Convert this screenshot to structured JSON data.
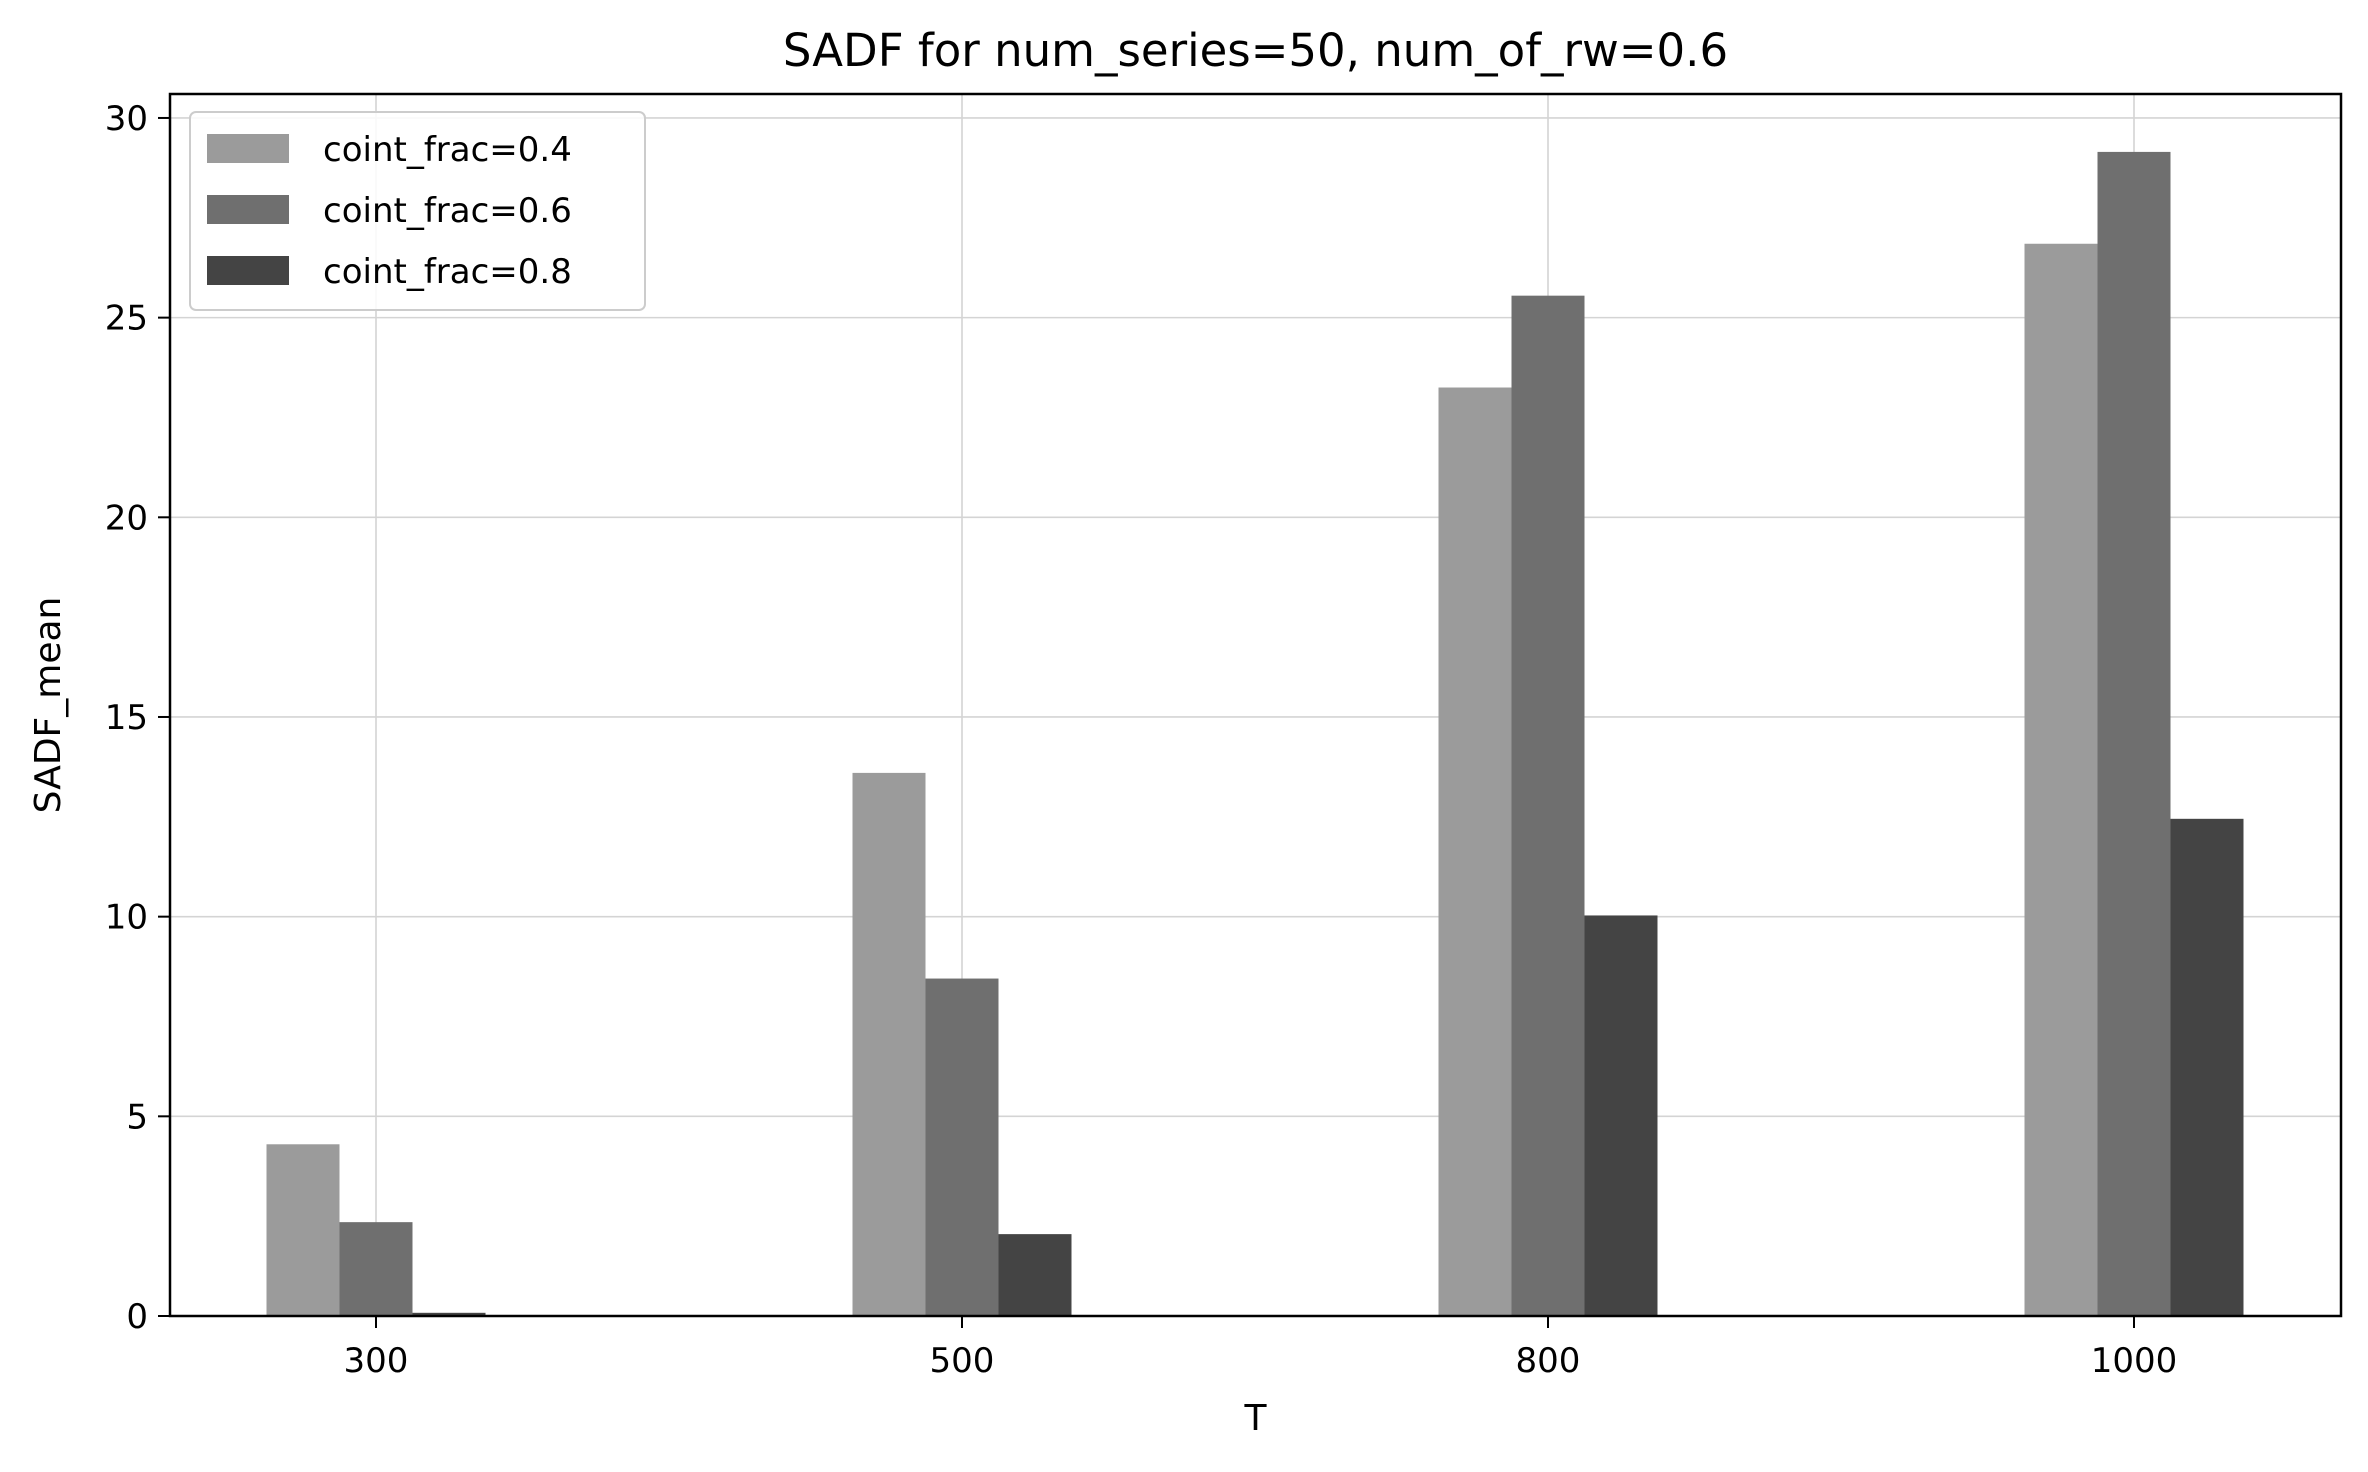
{
  "chart_data": {
    "type": "bar",
    "title": "SADF for num_series=50, num_of_rw=0.6",
    "xlabel": "T",
    "ylabel": "SADF_mean",
    "categories": [
      "300",
      "500",
      "800",
      "1000"
    ],
    "series": [
      {
        "name": "coint_frac=0.4",
        "values": [
          4.3,
          13.6,
          23.25,
          26.85
        ],
        "color": "#9b9b9b"
      },
      {
        "name": "coint_frac=0.6",
        "values": [
          2.35,
          8.45,
          25.55,
          29.15
        ],
        "color": "#6f6f6f"
      },
      {
        "name": "coint_frac=0.8",
        "values": [
          0.08,
          2.05,
          10.03,
          12.45
        ],
        "color": "#444444"
      }
    ],
    "ylim": [
      0,
      30.6
    ],
    "yticks": [
      "0",
      "5",
      "10",
      "15",
      "20",
      "25",
      "30"
    ],
    "grid": true,
    "legend_position": "top-left"
  }
}
